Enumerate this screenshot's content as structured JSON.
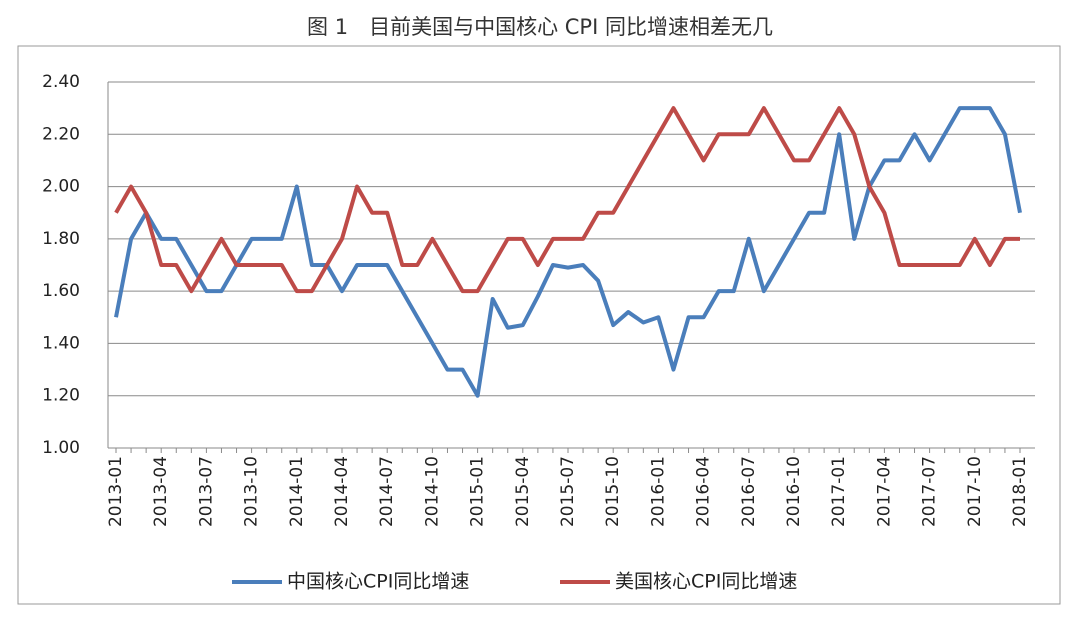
{
  "chart_data": {
    "type": "line",
    "title": "图 1　目前美国与中国核心 CPI 同比增速相差无几",
    "categories": [
      "2013-01",
      null,
      null,
      "2013-04",
      null,
      null,
      "2013-07",
      null,
      null,
      "2013-10",
      null,
      null,
      "2014-01",
      null,
      null,
      "2014-04",
      null,
      null,
      "2014-07",
      null,
      null,
      "2014-10",
      null,
      null,
      "2015-01",
      null,
      null,
      "2015-04",
      null,
      null,
      "2015-07",
      null,
      null,
      "2015-10",
      null,
      null,
      "2016-01",
      null,
      null,
      "2016-04",
      null,
      null,
      "2016-07",
      null,
      null,
      "2016-10",
      null,
      null,
      "2017-01",
      null,
      null,
      "2017-04",
      null,
      null,
      "2017-07",
      null,
      null,
      "2017-10",
      null,
      null,
      "2018-01"
    ],
    "series": [
      {
        "name": "中国核心CPI同比增速",
        "color": "#4a7ebb",
        "values": [
          1.5,
          1.8,
          1.9,
          1.8,
          1.8,
          1.7,
          1.6,
          1.6,
          1.7,
          1.8,
          1.8,
          1.8,
          2.0,
          1.7,
          1.7,
          1.6,
          1.7,
          1.7,
          1.7,
          1.6,
          1.5,
          1.4,
          1.3,
          1.3,
          1.2,
          1.57,
          1.46,
          1.47,
          1.58,
          1.7,
          1.69,
          1.7,
          1.64,
          1.47,
          1.52,
          1.48,
          1.5,
          1.3,
          1.5,
          1.5,
          1.6,
          1.6,
          1.8,
          1.6,
          1.7,
          1.8,
          1.9,
          1.9,
          2.2,
          1.8,
          2.0,
          2.1,
          2.1,
          2.2,
          2.1,
          2.2,
          2.3,
          2.3,
          2.3,
          2.2,
          1.9
        ]
      },
      {
        "name": "美国核心CPI同比增速",
        "color": "#be4b48",
        "values": [
          1.9,
          2.0,
          1.9,
          1.7,
          1.7,
          1.6,
          1.7,
          1.8,
          1.7,
          1.7,
          1.7,
          1.7,
          1.6,
          1.6,
          1.7,
          1.8,
          2.0,
          1.9,
          1.9,
          1.7,
          1.7,
          1.8,
          1.7,
          1.6,
          1.6,
          1.7,
          1.8,
          1.8,
          1.7,
          1.8,
          1.8,
          1.8,
          1.9,
          1.9,
          2.0,
          2.1,
          2.2,
          2.3,
          2.2,
          2.1,
          2.2,
          2.2,
          2.2,
          2.3,
          2.2,
          2.1,
          2.1,
          2.2,
          2.3,
          2.2,
          2.0,
          1.9,
          1.7,
          1.7,
          1.7,
          1.7,
          1.7,
          1.8,
          1.7,
          1.8,
          1.8
        ]
      }
    ],
    "ylim": [
      1.0,
      2.4
    ],
    "yticks": [
      {
        "value": 1.0,
        "label": "1.00"
      },
      {
        "value": 1.2,
        "label": "1.20"
      },
      {
        "value": 1.4,
        "label": "1.40"
      },
      {
        "value": 1.6,
        "label": "1.60"
      },
      {
        "value": 1.8,
        "label": "1.80"
      },
      {
        "value": 2.0,
        "label": "2.00"
      },
      {
        "value": 2.2,
        "label": "2.20"
      },
      {
        "value": 2.4,
        "label": "2.40"
      }
    ],
    "grid": true,
    "legend": "bottom"
  }
}
